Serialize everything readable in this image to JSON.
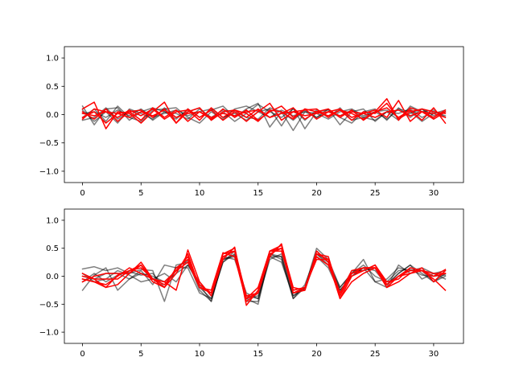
{
  "colors": {
    "gray_series": "#000000",
    "red_series": "#ff0000",
    "axes": "#000000",
    "background": "#ffffff"
  },
  "chart_data": [
    {
      "type": "line",
      "title": "",
      "xlabel": "",
      "ylabel": "",
      "xlim": [
        -1.55,
        32.55
      ],
      "ylim": [
        -1.2,
        1.2
      ],
      "x_ticks": [
        0,
        5,
        10,
        15,
        20,
        25,
        30
      ],
      "y_ticks": [
        -1.0,
        -0.5,
        0.0,
        0.5,
        1.0
      ],
      "x_tick_labels": [
        "0",
        "5",
        "10",
        "15",
        "20",
        "25",
        "30"
      ],
      "y_tick_labels": [
        "−1.0",
        "−0.5",
        "0.0",
        "0.5",
        "1.0"
      ],
      "grid": false,
      "legend": "none",
      "x": [
        0,
        1,
        2,
        3,
        4,
        5,
        6,
        7,
        8,
        9,
        10,
        11,
        12,
        13,
        14,
        15,
        16,
        17,
        18,
        19,
        20,
        21,
        22,
        23,
        24,
        25,
        26,
        27,
        28,
        29,
        30,
        31
      ],
      "series": [
        {
          "color": "gray",
          "values": [
            0.15,
            -0.18,
            0.1,
            0.12,
            -0.1,
            0.05,
            0.12,
            0.05,
            -0.08,
            0.1,
            -0.05,
            0.08,
            0.15,
            -0.05,
            0.1,
            0.2,
            -0.22,
            0.05,
            -0.28,
            0.05,
            -0.05,
            0.1,
            -0.18,
            0.05,
            0.1,
            -0.12,
            0.05,
            -0.1,
            0.15,
            0.05,
            0.08,
            -0.05
          ]
        },
        {
          "color": "gray",
          "values": [
            -0.05,
            0.1,
            -0.12,
            0.15,
            -0.05,
            -0.12,
            0.08,
            0.1,
            0.12,
            -0.05,
            -0.15,
            0.05,
            -0.08,
            0.1,
            0.15,
            0.05,
            0.1,
            -0.2,
            0.12,
            -0.25,
            0.05,
            0.08,
            -0.05,
            -0.15,
            0.05,
            0.1,
            -0.1,
            0.12,
            -0.05,
            0.1,
            -0.08,
            0.05
          ]
        },
        {
          "color": "gray",
          "values": [
            0.08,
            -0.12,
            0.05,
            -0.15,
            0.1,
            0.02,
            -0.08,
            0.12,
            -0.05,
            0.05,
            0.12,
            -0.1,
            0.05,
            -0.12,
            0.02,
            0.18,
            0.05,
            -0.05,
            0.1,
            -0.1,
            0.08,
            -0.05,
            0.12,
            -0.1,
            -0.05,
            0.05,
            -0.08,
            0.1,
            0.05,
            -0.12,
            0.02,
            0.08
          ]
        },
        {
          "color": "gray",
          "values": [
            0.02,
            0.05,
            -0.05,
            0.08,
            -0.02,
            0.1,
            -0.05,
            0.02,
            0.08,
            -0.02,
            0.05,
            0.1,
            -0.05,
            0.02,
            -0.1,
            0.05,
            -0.05,
            0.08,
            -0.02,
            0.05,
            0.02,
            -0.08,
            0.05,
            0.1,
            -0.02,
            0.05,
            0.08,
            -0.05,
            0.02,
            0.1,
            -0.02,
            0.05
          ]
        },
        {
          "color": "gray",
          "values": [
            -0.1,
            -0.05,
            0.12,
            -0.08,
            0.05,
            0.08,
            -0.1,
            0.05,
            0.02,
            -0.08,
            0.1,
            -0.05,
            0.08,
            0.05,
            -0.05,
            -0.08,
            0.12,
            0.05,
            -0.1,
            0.08,
            -0.05,
            0.05,
            -0.02,
            0.08,
            -0.05,
            -0.1,
            0.05,
            0.02,
            0.1,
            -0.05,
            0.05,
            -0.02
          ]
        },
        {
          "color": "red",
          "values": [
            0.1,
            0.22,
            -0.25,
            0.05,
            0.02,
            -0.15,
            0.05,
            0.22,
            -0.15,
            0.1,
            -0.05,
            0.08,
            -0.1,
            0.05,
            -0.12,
            0.05,
            0.2,
            -0.1,
            0.05,
            0.08,
            0.1,
            -0.05,
            0.08,
            0.02,
            -0.08,
            0.05,
            0.28,
            -0.1,
            0.12,
            0.05,
            -0.05,
            0.08
          ]
        },
        {
          "color": "red",
          "values": [
            -0.05,
            0.05,
            -0.15,
            0.02,
            0.05,
            -0.1,
            0.12,
            -0.05,
            0.08,
            -0.12,
            0.05,
            -0.08,
            0.1,
            -0.05,
            0.08,
            -0.1,
            0.05,
            0.15,
            -0.05,
            0.1,
            -0.08,
            0.05,
            0.1,
            -0.05,
            0.02,
            0.08,
            -0.05,
            0.25,
            -0.12,
            0.05,
            -0.08,
            0.05
          ]
        },
        {
          "color": "red",
          "values": [
            0.05,
            -0.08,
            0.1,
            -0.12,
            0.05,
            0.08,
            -0.05,
            0.1,
            -0.15,
            0.05,
            0.12,
            -0.1,
            0.05,
            0.08,
            -0.05,
            0.1,
            -0.05,
            0.02,
            0.12,
            -0.08,
            0.05,
            0.1,
            -0.05,
            0.08,
            -0.1,
            0.05,
            0.12,
            -0.05,
            0.08,
            -0.1,
            0.12,
            -0.15
          ]
        },
        {
          "color": "red",
          "values": [
            -0.08,
            0.1,
            0.05,
            -0.05,
            0.08,
            -0.02,
            0.1,
            -0.08,
            0.05,
            0.08,
            -0.1,
            0.12,
            -0.05,
            0.08,
            0.02,
            -0.12,
            0.08,
            0.05,
            -0.08,
            0.1,
            0.05,
            -0.02,
            0.08,
            -0.1,
            0.05,
            0.02,
            0.2,
            -0.08,
            0.05,
            0.1,
            0.05,
            0.02
          ]
        },
        {
          "color": "red",
          "values": [
            0.02,
            -0.02,
            0.05,
            0.02,
            -0.05,
            0.05,
            -0.02,
            0.08,
            -0.05,
            0.02,
            0.05,
            -0.05,
            0.02,
            -0.02,
            0.05,
            0.08,
            -0.05,
            0.02,
            0.05,
            -0.02,
            0.02,
            0.05,
            -0.02,
            0.05,
            0.02,
            -0.05,
            0.05,
            0.08,
            -0.02,
            0.05,
            0.02,
            -0.05
          ]
        }
      ]
    },
    {
      "type": "line",
      "title": "",
      "xlabel": "",
      "ylabel": "",
      "xlim": [
        -1.55,
        32.55
      ],
      "ylim": [
        -1.2,
        1.2
      ],
      "x_ticks": [
        0,
        5,
        10,
        15,
        20,
        25,
        30
      ],
      "y_ticks": [
        -1.0,
        -0.5,
        0.0,
        0.5,
        1.0
      ],
      "x_tick_labels": [
        "0",
        "5",
        "10",
        "15",
        "20",
        "25",
        "30"
      ],
      "y_tick_labels": [
        "−1.0",
        "−0.5",
        "0.0",
        "0.5",
        "1.0"
      ],
      "grid": false,
      "legend": "none",
      "x": [
        0,
        1,
        2,
        3,
        4,
        5,
        6,
        7,
        8,
        9,
        10,
        11,
        12,
        13,
        14,
        15,
        16,
        17,
        18,
        19,
        20,
        21,
        22,
        23,
        24,
        25,
        26,
        27,
        28,
        29,
        30,
        31
      ],
      "series": [
        {
          "color": "gray",
          "values": [
            0.13,
            0.17,
            0.1,
            0.15,
            0.05,
            0.12,
            0.1,
            -0.45,
            0.2,
            0.25,
            -0.2,
            -0.4,
            0.25,
            0.4,
            -0.4,
            -0.5,
            0.4,
            0.3,
            -0.4,
            -0.2,
            0.5,
            0.3,
            -0.2,
            0.05,
            0.3,
            -0.1,
            -0.05,
            0.15,
            0.1,
            0.15,
            0.05,
            0.1
          ]
        },
        {
          "color": "gray",
          "values": [
            -0.25,
            0.02,
            0.15,
            -0.25,
            -0.05,
            0.1,
            -0.15,
            0.2,
            0.15,
            0.28,
            -0.25,
            -0.45,
            0.3,
            0.38,
            -0.45,
            -0.45,
            0.35,
            0.25,
            -0.35,
            -0.22,
            0.4,
            0.2,
            -0.25,
            0.0,
            0.15,
            -0.1,
            -0.2,
            0.2,
            0.05,
            0.1,
            -0.1,
            0.05
          ]
        },
        {
          "color": "gray",
          "values": [
            0.05,
            -0.1,
            -0.05,
            0.1,
            0.02,
            -0.1,
            -0.05,
            0.05,
            -0.1,
            0.2,
            -0.1,
            -0.35,
            0.35,
            0.3,
            -0.3,
            -0.4,
            0.3,
            0.4,
            -0.3,
            -0.25,
            0.35,
            0.15,
            -0.3,
            0.1,
            0.1,
            0.15,
            -0.15,
            0.05,
            0.2,
            -0.05,
            0.05,
            -0.05
          ]
        },
        {
          "color": "gray",
          "values": [
            -0.1,
            0.05,
            -0.1,
            0.02,
            0.08,
            0.02,
            0.05,
            -0.2,
            0.15,
            0.15,
            -0.3,
            -0.4,
            0.25,
            0.45,
            -0.35,
            -0.4,
            0.4,
            0.35,
            -0.35,
            -0.2,
            0.45,
            0.25,
            -0.2,
            0.05,
            0.2,
            0.0,
            -0.1,
            0.1,
            0.12,
            0.02,
            0.0,
            0.02
          ]
        },
        {
          "color": "gray",
          "values": [
            0.0,
            -0.05,
            0.05,
            0.05,
            -0.05,
            0.05,
            0.0,
            -0.1,
            0.05,
            0.2,
            -0.15,
            -0.45,
            0.3,
            0.35,
            -0.4,
            -0.35,
            0.35,
            0.35,
            -0.4,
            -0.15,
            0.4,
            0.25,
            -0.25,
            0.0,
            0.15,
            0.1,
            -0.15,
            0.05,
            0.2,
            0.05,
            -0.1,
            0.0
          ]
        },
        {
          "color": "red",
          "values": [
            -0.1,
            0.0,
            0.05,
            0.05,
            0.05,
            0.25,
            -0.05,
            -0.1,
            -0.25,
            0.47,
            -0.1,
            -0.35,
            0.3,
            0.52,
            -0.52,
            -0.25,
            0.45,
            0.55,
            -0.2,
            -0.25,
            0.45,
            0.25,
            -0.4,
            0.0,
            0.1,
            0.2,
            -0.15,
            0.0,
            0.15,
            0.1,
            -0.05,
            -0.25
          ]
        },
        {
          "color": "red",
          "values": [
            0.05,
            -0.05,
            -0.2,
            0.02,
            0.1,
            0.2,
            -0.05,
            -0.2,
            0.05,
            0.4,
            -0.2,
            -0.25,
            0.42,
            0.35,
            -0.45,
            -0.3,
            0.35,
            0.58,
            -0.25,
            -0.2,
            0.3,
            0.3,
            -0.4,
            -0.1,
            0.05,
            0.15,
            -0.2,
            0.0,
            0.05,
            0.1,
            0.0,
            0.12
          ]
        },
        {
          "color": "red",
          "values": [
            -0.05,
            -0.1,
            -0.15,
            0.0,
            0.15,
            0.05,
            -0.05,
            -0.15,
            0.1,
            0.25,
            -0.2,
            -0.3,
            0.4,
            0.5,
            -0.4,
            -0.2,
            0.45,
            0.5,
            -0.3,
            -0.25,
            0.4,
            0.35,
            -0.35,
            0.05,
            0.1,
            0.2,
            -0.1,
            -0.05,
            0.15,
            0.1,
            0.05,
            0.05
          ]
        },
        {
          "color": "red",
          "values": [
            -0.05,
            -0.1,
            -0.2,
            -0.15,
            0.05,
            0.2,
            -0.1,
            -0.2,
            0.15,
            0.3,
            -0.15,
            -0.3,
            0.35,
            0.45,
            -0.35,
            -0.3,
            0.45,
            0.45,
            -0.25,
            -0.2,
            0.35,
            0.2,
            -0.3,
            0.1,
            0.15,
            0.15,
            -0.2,
            -0.1,
            0.05,
            0.15,
            -0.1,
            0.1
          ]
        },
        {
          "color": "red",
          "values": [
            0.0,
            -0.05,
            -0.05,
            -0.05,
            0.1,
            0.15,
            -0.05,
            -0.1,
            0.1,
            0.35,
            -0.2,
            -0.3,
            0.4,
            0.45,
            -0.4,
            -0.3,
            0.4,
            0.5,
            -0.3,
            -0.2,
            0.4,
            0.3,
            -0.3,
            0.05,
            0.15,
            0.15,
            -0.15,
            0.0,
            0.1,
            0.1,
            0.0,
            0.05
          ]
        }
      ]
    }
  ]
}
